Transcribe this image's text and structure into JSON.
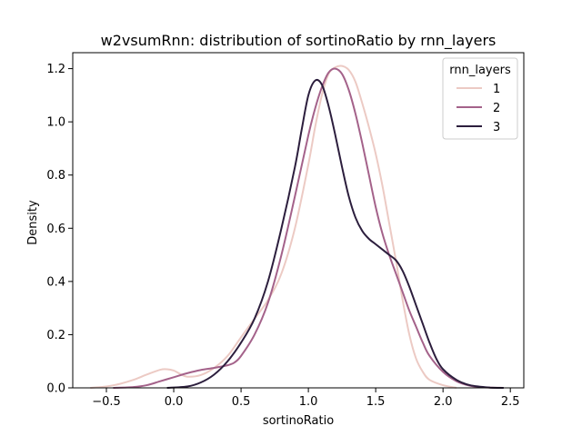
{
  "chart_data": {
    "type": "line",
    "title": "w2vsumRnn: distribution of sortinoRatio by rnn_layers",
    "xlabel": "sortinoRatio",
    "ylabel": "Density",
    "xlim": [
      -0.75,
      2.6
    ],
    "ylim": [
      0,
      1.26
    ],
    "xticks": [
      -0.5,
      0.0,
      0.5,
      1.0,
      1.5,
      2.0,
      2.5
    ],
    "xtick_labels": [
      "−0.5",
      "0.0",
      "0.5",
      "1.0",
      "1.5",
      "2.0",
      "2.5"
    ],
    "yticks": [
      0.0,
      0.2,
      0.4,
      0.6,
      0.8,
      1.0,
      1.2
    ],
    "ytick_labels": [
      "0.0",
      "0.2",
      "0.4",
      "0.6",
      "0.8",
      "1.0",
      "1.2"
    ],
    "grid": false,
    "legend": {
      "title": "rnn_layers",
      "placement": "top-right"
    },
    "series": [
      {
        "name": "1",
        "color": "#eccac4",
        "points": [
          [
            -0.62,
            0.0
          ],
          [
            -0.5,
            0.005
          ],
          [
            -0.4,
            0.015
          ],
          [
            -0.3,
            0.03
          ],
          [
            -0.2,
            0.05
          ],
          [
            -0.1,
            0.068
          ],
          [
            -0.05,
            0.07
          ],
          [
            0.0,
            0.065
          ],
          [
            0.05,
            0.052
          ],
          [
            0.1,
            0.042
          ],
          [
            0.2,
            0.048
          ],
          [
            0.3,
            0.075
          ],
          [
            0.4,
            0.12
          ],
          [
            0.5,
            0.19
          ],
          [
            0.6,
            0.26
          ],
          [
            0.7,
            0.33
          ],
          [
            0.8,
            0.43
          ],
          [
            0.9,
            0.6
          ],
          [
            1.0,
            0.84
          ],
          [
            1.05,
            0.98
          ],
          [
            1.1,
            1.1
          ],
          [
            1.15,
            1.18
          ],
          [
            1.2,
            1.205
          ],
          [
            1.25,
            1.21
          ],
          [
            1.3,
            1.195
          ],
          [
            1.35,
            1.15
          ],
          [
            1.4,
            1.07
          ],
          [
            1.45,
            0.98
          ],
          [
            1.5,
            0.88
          ],
          [
            1.55,
            0.76
          ],
          [
            1.6,
            0.62
          ],
          [
            1.65,
            0.48
          ],
          [
            1.7,
            0.33
          ],
          [
            1.75,
            0.2
          ],
          [
            1.8,
            0.11
          ],
          [
            1.85,
            0.06
          ],
          [
            1.9,
            0.03
          ],
          [
            2.0,
            0.01
          ],
          [
            2.1,
            0.0
          ]
        ]
      },
      {
        "name": "2",
        "color": "#a4628a",
        "points": [
          [
            -0.45,
            0.0
          ],
          [
            -0.3,
            0.003
          ],
          [
            -0.2,
            0.01
          ],
          [
            -0.1,
            0.025
          ],
          [
            0.0,
            0.04
          ],
          [
            0.1,
            0.055
          ],
          [
            0.2,
            0.067
          ],
          [
            0.3,
            0.075
          ],
          [
            0.4,
            0.085
          ],
          [
            0.45,
            0.095
          ],
          [
            0.5,
            0.12
          ],
          [
            0.6,
            0.2
          ],
          [
            0.7,
            0.32
          ],
          [
            0.8,
            0.5
          ],
          [
            0.9,
            0.72
          ],
          [
            1.0,
            0.95
          ],
          [
            1.05,
            1.05
          ],
          [
            1.1,
            1.13
          ],
          [
            1.15,
            1.185
          ],
          [
            1.2,
            1.2
          ],
          [
            1.25,
            1.18
          ],
          [
            1.3,
            1.12
          ],
          [
            1.35,
            1.03
          ],
          [
            1.4,
            0.92
          ],
          [
            1.45,
            0.8
          ],
          [
            1.5,
            0.68
          ],
          [
            1.55,
            0.58
          ],
          [
            1.6,
            0.5
          ],
          [
            1.65,
            0.43
          ],
          [
            1.7,
            0.36
          ],
          [
            1.75,
            0.29
          ],
          [
            1.8,
            0.23
          ],
          [
            1.85,
            0.17
          ],
          [
            1.9,
            0.12
          ],
          [
            2.0,
            0.06
          ],
          [
            2.1,
            0.025
          ],
          [
            2.2,
            0.008
          ],
          [
            2.3,
            0.002
          ],
          [
            2.45,
            0.0
          ]
        ]
      },
      {
        "name": "3",
        "color": "#2c1e3d",
        "points": [
          [
            -0.05,
            0.0
          ],
          [
            0.1,
            0.005
          ],
          [
            0.2,
            0.02
          ],
          [
            0.3,
            0.05
          ],
          [
            0.4,
            0.1
          ],
          [
            0.5,
            0.17
          ],
          [
            0.6,
            0.26
          ],
          [
            0.7,
            0.4
          ],
          [
            0.8,
            0.6
          ],
          [
            0.9,
            0.83
          ],
          [
            0.95,
            0.97
          ],
          [
            1.0,
            1.1
          ],
          [
            1.05,
            1.155
          ],
          [
            1.1,
            1.14
          ],
          [
            1.15,
            1.06
          ],
          [
            1.2,
            0.95
          ],
          [
            1.25,
            0.83
          ],
          [
            1.3,
            0.72
          ],
          [
            1.35,
            0.64
          ],
          [
            1.4,
            0.59
          ],
          [
            1.45,
            0.56
          ],
          [
            1.5,
            0.54
          ],
          [
            1.55,
            0.52
          ],
          [
            1.6,
            0.5
          ],
          [
            1.65,
            0.48
          ],
          [
            1.7,
            0.44
          ],
          [
            1.75,
            0.38
          ],
          [
            1.8,
            0.31
          ],
          [
            1.85,
            0.24
          ],
          [
            1.9,
            0.17
          ],
          [
            1.95,
            0.11
          ],
          [
            2.0,
            0.07
          ],
          [
            2.1,
            0.03
          ],
          [
            2.2,
            0.01
          ],
          [
            2.35,
            0.001
          ],
          [
            2.45,
            0.0
          ]
        ]
      }
    ]
  }
}
